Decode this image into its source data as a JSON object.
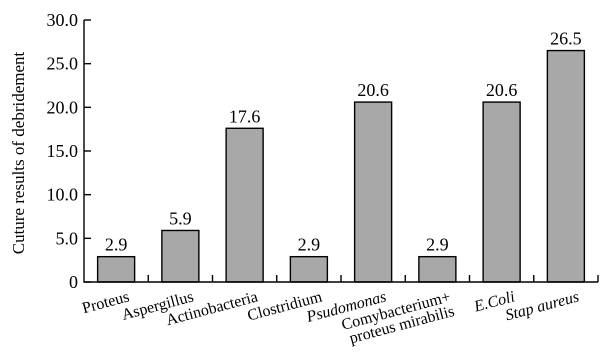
{
  "chart_data": {
    "type": "bar",
    "categories": [
      {
        "lines": [
          "Proteus"
        ],
        "italic": false
      },
      {
        "lines": [
          "Aspergillus"
        ],
        "italic": false
      },
      {
        "lines": [
          "Actinobacteria"
        ],
        "italic": false
      },
      {
        "lines": [
          "Clostridium"
        ],
        "italic": false
      },
      {
        "lines": [
          "Psudomonas"
        ],
        "italic": true
      },
      {
        "lines": [
          "Comybacterium+",
          "proteus mirabilis"
        ],
        "italic": false
      },
      {
        "lines": [
          "E.Coli"
        ],
        "italic": true
      },
      {
        "lines": [
          "Stap aureus"
        ],
        "italic": true
      }
    ],
    "values": [
      2.9,
      5.9,
      17.6,
      2.9,
      20.6,
      2.9,
      20.6,
      26.5
    ],
    "value_labels": [
      "2.9",
      "5.9",
      "17.6",
      "2.9",
      "20.6",
      "2.9",
      "20.6",
      "26.5"
    ],
    "title": "",
    "xlabel": "",
    "ylabel": "Cuture results of debridement",
    "ylim": [
      0,
      30
    ],
    "yticks": [
      {
        "value": 0,
        "label": "0"
      },
      {
        "value": 5,
        "label": "5.0"
      },
      {
        "value": 10,
        "label": "10.0"
      },
      {
        "value": 15,
        "label": "15.0"
      },
      {
        "value": 20,
        "label": "20.0"
      },
      {
        "value": 25,
        "label": "25.0"
      },
      {
        "value": 30,
        "label": "30.0"
      }
    ],
    "grid": false,
    "legend": "none",
    "bar_color": "#a8a8a8"
  }
}
